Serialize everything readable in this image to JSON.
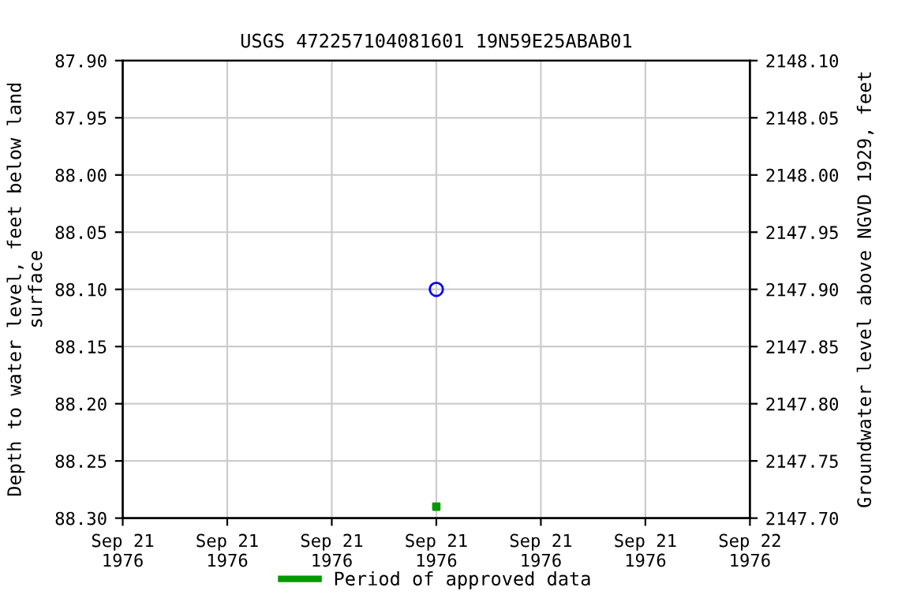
{
  "chart_data": {
    "type": "scatter",
    "title": "USGS 472257104081601 19N59E25ABAB01",
    "ylabel": "Depth to water level, feet below land\nsurface",
    "y2label": "Groundwater level above NGVD 1929, feet",
    "series": [
      {
        "color": "#0000ff",
        "marker": "circle",
        "x": [
          "1976-09-21T12:00"
        ],
        "values": [
          88.1
        ]
      },
      {
        "name": "Period of approved data",
        "color": "#009900",
        "marker": "square",
        "x": [
          "1976-09-21T12:00"
        ],
        "values": [
          88.29
        ]
      }
    ],
    "xlim": [
      "1976-09-21T00:00",
      "1976-09-22T00:00"
    ],
    "xticks": [
      {
        "value": "1976-09-21T00:00",
        "label": "Sep 21\n1976"
      },
      {
        "value": "1976-09-21T04:00",
        "label": "Sep 21\n1976"
      },
      {
        "value": "1976-09-21T08:00",
        "label": "Sep 21\n1976"
      },
      {
        "value": "1976-09-21T12:00",
        "label": "Sep 21\n1976"
      },
      {
        "value": "1976-09-21T16:00",
        "label": "Sep 21\n1976"
      },
      {
        "value": "1976-09-21T20:00",
        "label": "Sep 21\n1976"
      },
      {
        "value": "1976-09-22T00:00",
        "label": "Sep 22\n1976"
      }
    ],
    "ylim": [
      88.3,
      87.9
    ],
    "yticks": [
      {
        "value": 87.9,
        "label": "87.90"
      },
      {
        "value": 87.95,
        "label": "87.95"
      },
      {
        "value": 88.0,
        "label": "88.00"
      },
      {
        "value": 88.05,
        "label": "88.05"
      },
      {
        "value": 88.1,
        "label": "88.10"
      },
      {
        "value": 88.15,
        "label": "88.15"
      },
      {
        "value": 88.2,
        "label": "88.20"
      },
      {
        "value": 88.25,
        "label": "88.25"
      },
      {
        "value": 88.3,
        "label": "88.30"
      }
    ],
    "y2lim": [
      2147.7,
      2148.1
    ],
    "y2ticks": [
      {
        "value": 2147.7,
        "label": "2147.70"
      },
      {
        "value": 2147.75,
        "label": "2147.75"
      },
      {
        "value": 2147.8,
        "label": "2147.80"
      },
      {
        "value": 2147.85,
        "label": "2147.85"
      },
      {
        "value": 2147.9,
        "label": "2147.90"
      },
      {
        "value": 2147.95,
        "label": "2147.95"
      },
      {
        "value": 2148.0,
        "label": "2148.00"
      },
      {
        "value": 2148.05,
        "label": "2148.05"
      },
      {
        "value": 2148.1,
        "label": "2148.10"
      }
    ],
    "grid": true,
    "legend": "bottom"
  }
}
